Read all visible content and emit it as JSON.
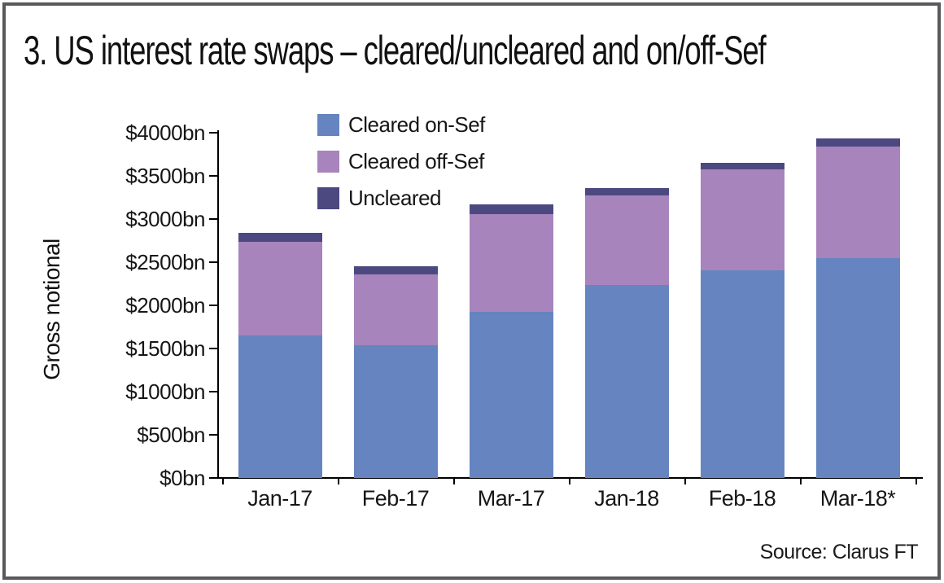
{
  "title": "3. US interest rate swaps – cleared/uncleared and on/off-Sef",
  "source_label": "Source: Clarus FT",
  "colors": {
    "frame": "#58595b",
    "axis": "#000000",
    "cleared_on_sef": "#6684c0",
    "cleared_off_sef": "#a784bc",
    "uncleared": "#4b4980"
  },
  "chart_data": {
    "type": "bar",
    "stacked": true,
    "title": "3. US interest rate swaps – cleared/uncleared and on/off-Sef",
    "ylabel": "Gross notional",
    "xlabel": "",
    "unit": "$bn gross notional",
    "ylim": [
      0,
      4000
    ],
    "grid": false,
    "legend_position": "top-left-inside",
    "categories": [
      "Jan-17",
      "Feb-17",
      "Mar-17",
      "Jan-18",
      "Feb-18",
      "Mar-18*"
    ],
    "series": [
      {
        "name": "Cleared on-Sef",
        "color": "#6684c0",
        "values": [
          1650,
          1540,
          1920,
          2240,
          2410,
          2550
        ]
      },
      {
        "name": "Cleared off-Sef",
        "color": "#a784bc",
        "values": [
          1090,
          820,
          1140,
          1030,
          1170,
          1290
        ]
      },
      {
        "name": "Uncleared",
        "color": "#4b4980",
        "values": [
          100,
          90,
          110,
          90,
          70,
          90
        ]
      }
    ],
    "ytick_values": [
      0,
      500,
      1000,
      1500,
      2000,
      2500,
      3000,
      3500,
      4000
    ],
    "ytick_labels": [
      "$0bn",
      "$500bn",
      "$1000bn",
      "$1500bn",
      "$2000bn",
      "$2500bn",
      "$3000bn",
      "$3500bn",
      "$4000bn"
    ]
  }
}
